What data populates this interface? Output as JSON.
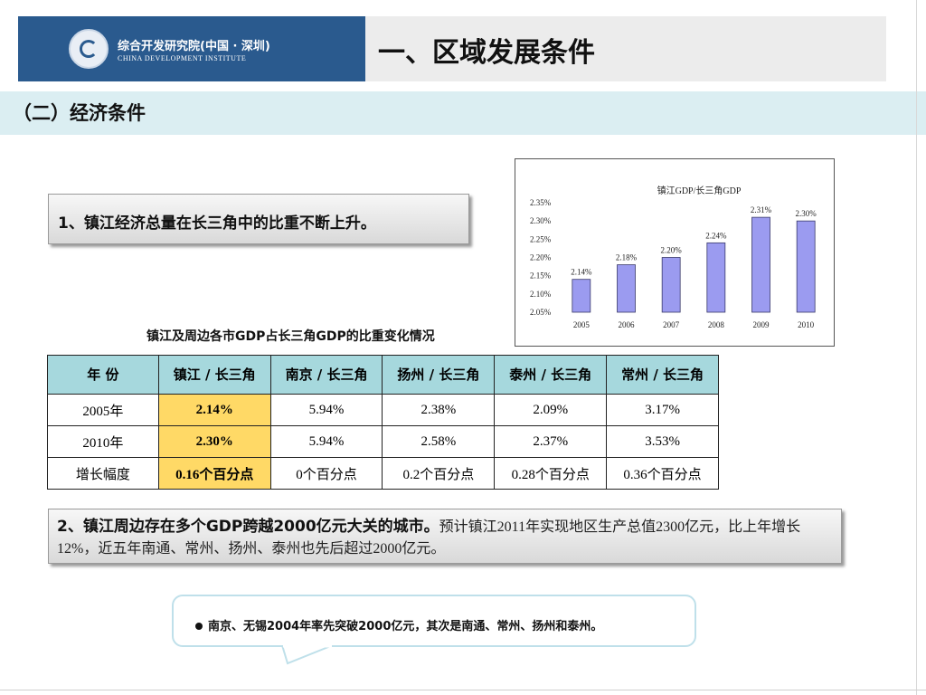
{
  "header": {
    "logo_cn": "综合开发研究院(中国 · 深圳)",
    "logo_en": "CHINA DEVELOPMENT INSTITUTE",
    "title": "一、区域发展条件"
  },
  "section": {
    "title": "（二）经济条件"
  },
  "point1": {
    "text": "1、镇江经济总量在长三角中的比重不断上升。"
  },
  "chart_data": {
    "type": "bar",
    "title": "镇江GDP/长三角GDP",
    "categories": [
      "2005",
      "2006",
      "2007",
      "2008",
      "2009",
      "2010"
    ],
    "values": [
      2.14,
      2.18,
      2.2,
      2.24,
      2.31,
      2.3
    ],
    "data_labels": [
      "2.14%",
      "2.18%",
      "2.20%",
      "2.24%",
      "2.31%",
      "2.30%"
    ],
    "ylim": [
      2.05,
      2.35
    ],
    "yticks": [
      "2.35%",
      "2.30%",
      "2.25%",
      "2.20%",
      "2.15%",
      "2.10%",
      "2.05%"
    ],
    "bar_color": "#9b9bf0",
    "grid": false,
    "legend": "none"
  },
  "table": {
    "title": "镇江及周边各市GDP占长三角GDP的比重变化情况",
    "headers": [
      "年 份",
      "镇江 / 长三角",
      "南京 / 长三角",
      "扬州 / 长三角",
      "泰州 / 长三角",
      "常州 / 长三角"
    ],
    "rows": [
      [
        "2005年",
        "2.14%",
        "5.94%",
        "2.38%",
        "2.09%",
        "3.17%"
      ],
      [
        "2010年",
        "2.30%",
        "5.94%",
        "2.58%",
        "2.37%",
        "3.53%"
      ],
      [
        "增长幅度",
        "0.16个百分点",
        "0个百分点",
        "0.2个百分点",
        "0.28个百分点",
        "0.36个百分点"
      ]
    ],
    "header_color": "#a6d8dd",
    "highlight_color": "#ffd966"
  },
  "point2": {
    "lead": "2、镇江周边存在多个GDP跨越2000亿元大关的城市。",
    "body": "预计镇江2011年实现地区生产总值2300亿元，比上年增长12%，近五年南通、常州、扬州、泰州也先后超过2000亿元。"
  },
  "callout": {
    "text": "南京、无锡2004年率先突破2000亿元，其次是南通、常州、扬州和泰州。"
  }
}
